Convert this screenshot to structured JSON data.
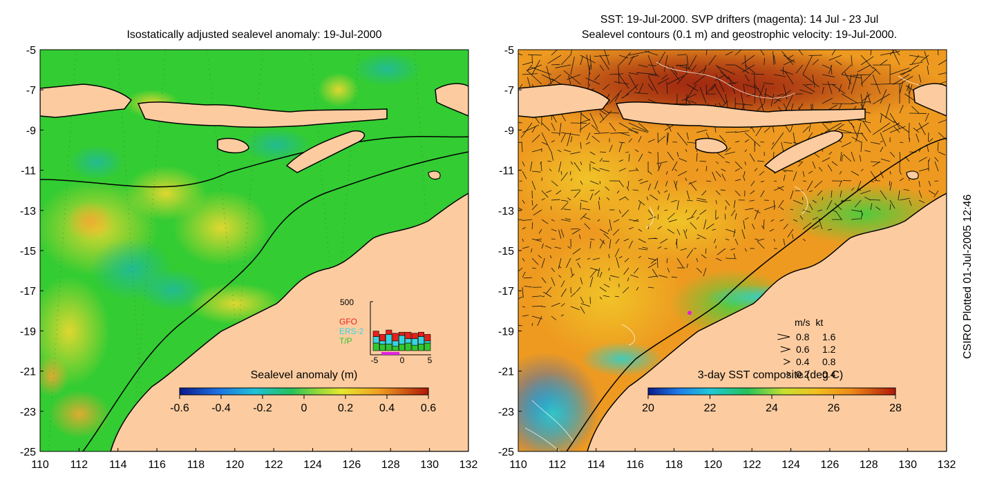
{
  "left_panel": {
    "title": "Isostatically adjusted sealevel anomaly: 19-Jul-2000",
    "colorbar": {
      "label": "Sealevel anomaly (m)",
      "ticks": [
        "-0.6",
        "-0.4",
        "-0.2",
        "0",
        "0.2",
        "0.4",
        "0.6"
      ],
      "range": [
        -0.6,
        0.6
      ]
    },
    "inset": {
      "ymax_label": "500",
      "legend": [
        {
          "name": "GFO",
          "color": "#e8201a"
        },
        {
          "name": "ERS-2",
          "color": "#33d6e0"
        },
        {
          "name": "T/P",
          "color": "#2ec82e"
        }
      ],
      "x_ticks": [
        "-5",
        "0",
        "5"
      ],
      "bars": [
        {
          "gfo": 0.25,
          "ers": 0.3,
          "tp": 0.35
        },
        {
          "gfo": 0.3,
          "ers": 0.15,
          "tp": 0.3
        },
        {
          "gfo": 0.2,
          "ers": 0.45,
          "tp": 0.3
        },
        {
          "gfo": 0.35,
          "ers": 0.25,
          "tp": 0.2
        },
        {
          "gfo": 0.15,
          "ers": 0.4,
          "tp": 0.3
        },
        {
          "gfo": 0.3,
          "ers": 0.2,
          "tp": 0.35
        },
        {
          "gfo": 0.25,
          "ers": 0.3,
          "tp": 0.25
        },
        {
          "gfo": 0.2,
          "ers": 0.35,
          "tp": 0.3
        },
        {
          "gfo": 0.3,
          "ers": 0.1,
          "tp": 0.35
        }
      ]
    }
  },
  "right_panel": {
    "title_line1": "SST: 19-Jul-2000. SVP drifters (magenta): 14 Jul - 23 Jul",
    "title_line2": "Sealevel contours (0.1 m) and geostrophic velocity: 19-Jul-2000.",
    "colorbar": {
      "label": "3-day SST composite (deg C)",
      "ticks": [
        "20",
        "22",
        "24",
        "26",
        "28"
      ],
      "range": [
        20,
        28
      ]
    },
    "velocity_legend": {
      "header": "m/s  kt",
      "rows": [
        {
          "ms": "0.8",
          "kt": "1.6",
          "speed": 0.8
        },
        {
          "ms": "0.6",
          "kt": "1.2",
          "speed": 0.6
        },
        {
          "ms": "0.4",
          "kt": "0.8",
          "speed": 0.4
        },
        {
          "ms": "0.2",
          "kt": "0.4",
          "speed": 0.2
        }
      ]
    },
    "drifter": {
      "lon": 118.8,
      "lat": -18.1
    }
  },
  "axes": {
    "lon_ticks": [
      "110",
      "112",
      "114",
      "116",
      "118",
      "120",
      "122",
      "124",
      "126",
      "128",
      "130",
      "132"
    ],
    "lat_ticks": [
      "-5",
      "-7",
      "-9",
      "-11",
      "-13",
      "-15",
      "-17",
      "-19",
      "-21",
      "-23",
      "-25"
    ],
    "lon_range": [
      110,
      132
    ],
    "lat_range": [
      -25,
      -5
    ]
  },
  "side_label": "CSIRO Plotted 01-Jul-2005 12:46",
  "colors": {
    "land": "#fccca0",
    "sla_base": "#33cc33",
    "sst_base": "#ee9a20"
  }
}
